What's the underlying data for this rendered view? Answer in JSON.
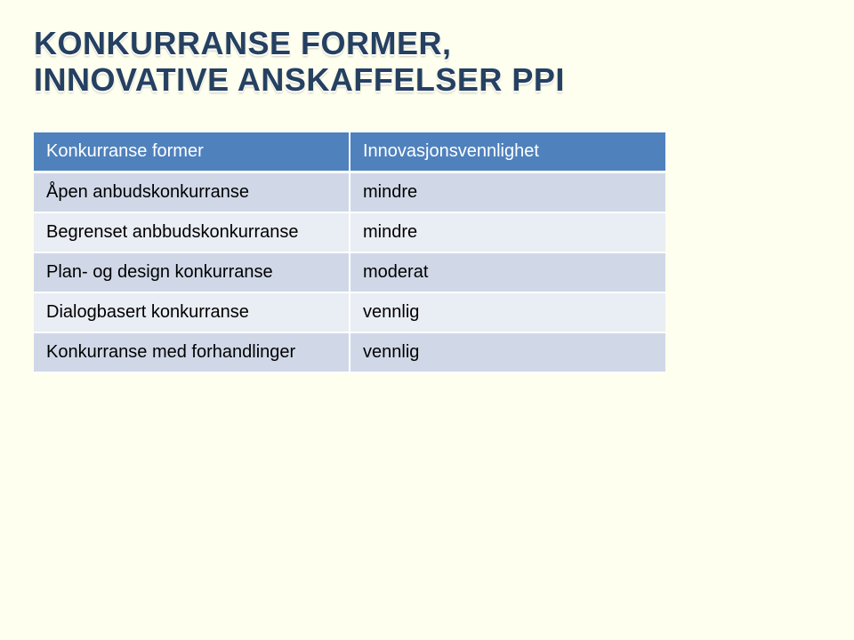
{
  "heading": {
    "line1": "KONKURRANSE FORMER,",
    "line2": "INNOVATIVE ANSKAFFELSER PPI"
  },
  "table": {
    "columns": [
      "Konkurranse former",
      "Innovasjonsvennlighet"
    ],
    "rows": [
      [
        "Åpen anbudskonkurranse",
        "mindre"
      ],
      [
        "Begrenset anbbudskonkurranse",
        "mindre"
      ],
      [
        "Plan- og design konkurranse",
        "moderat"
      ],
      [
        "Dialogbasert konkurranse",
        "vennlig"
      ],
      [
        "Konkurranse med forhandlinger",
        "vennlig"
      ]
    ],
    "header_bg": "#4f81bd",
    "header_text_color": "#ffffff",
    "row_odd_bg": "#d0d8e8",
    "row_even_bg": "#e9edf4",
    "border_color": "#ffffff",
    "fontsize": 20,
    "col_widths": [
      "50%",
      "50%"
    ]
  },
  "page_bg": "#feffee",
  "title_color": "#254061",
  "title_fontsize": 36
}
